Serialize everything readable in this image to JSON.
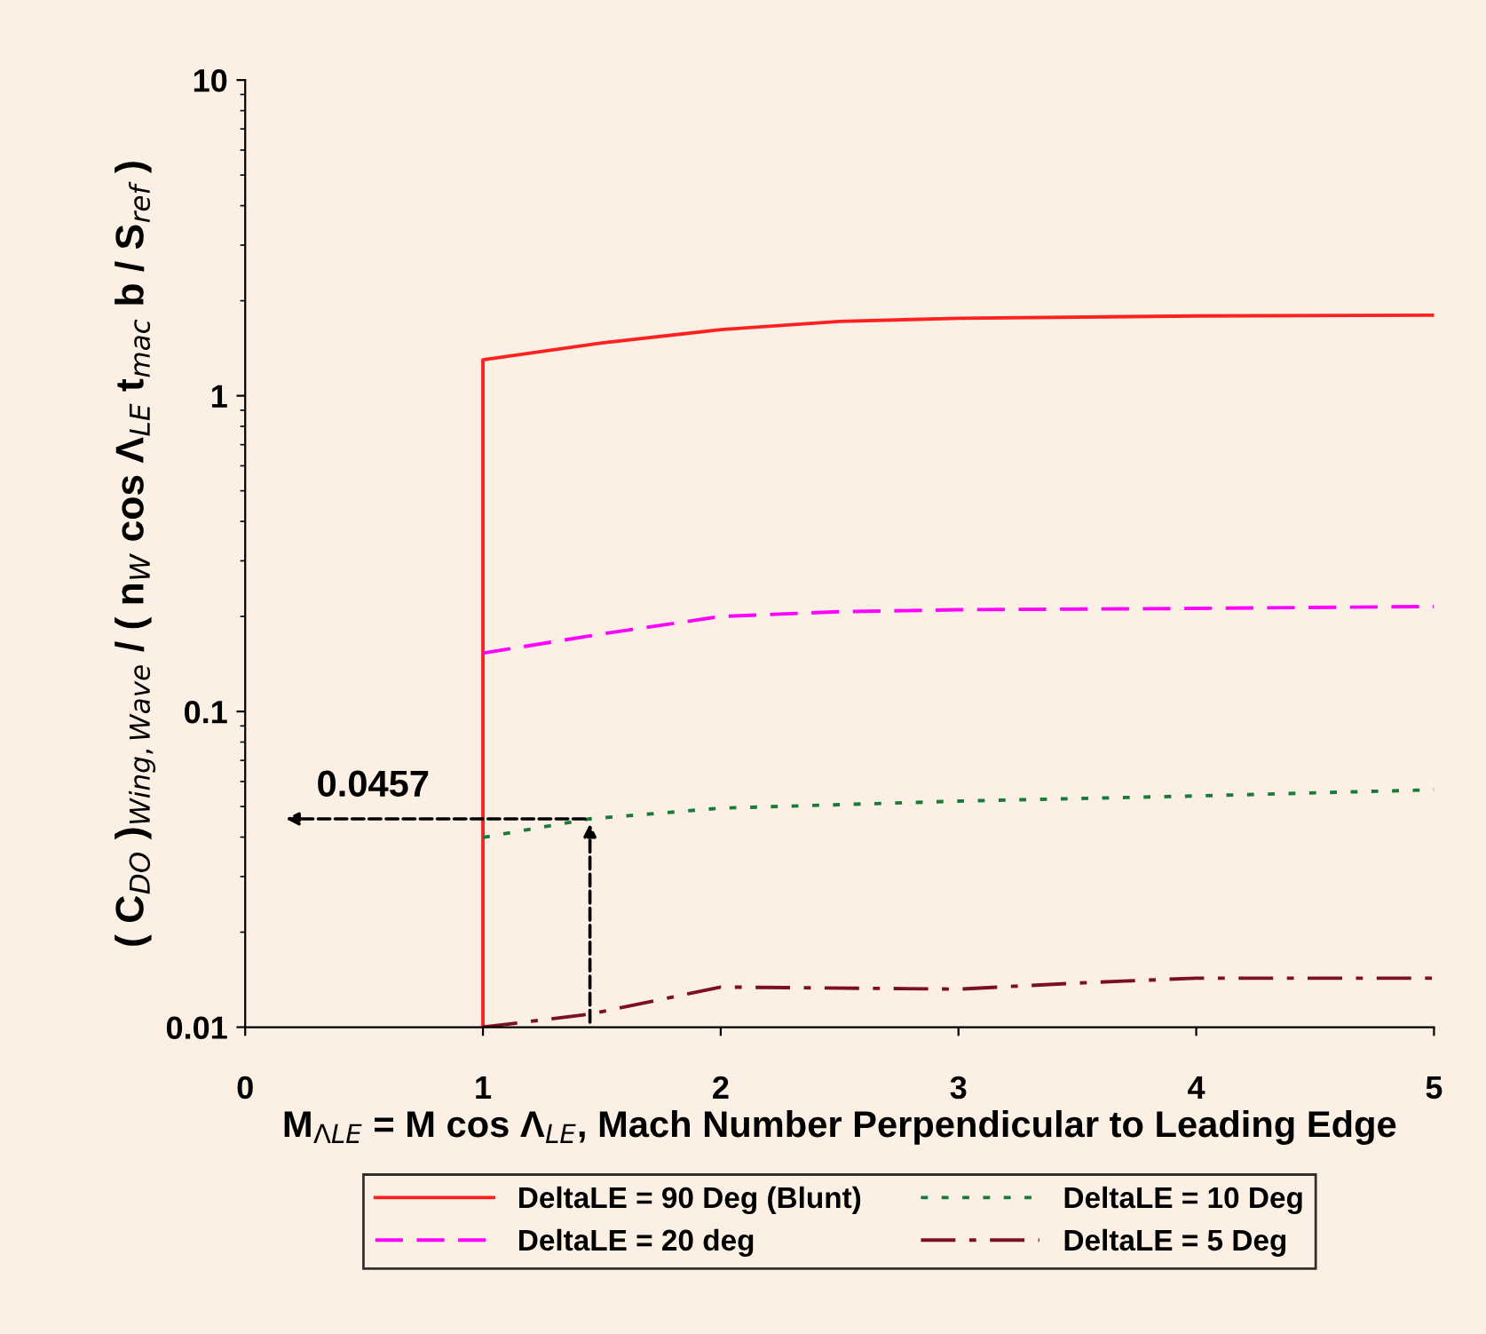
{
  "chart_data": {
    "type": "line",
    "xlabel": "M$_{ΛLE}$ = M cos Λ$_{LE}$, Mach Number Perpendicular to Leading Edge",
    "ylabel": "( C$_{DO}$ )$_{Wing,Wave}$ / ( n$_{W}$ cos Λ$_{LE}$ t$_{mac}$ b / S$_{ref}$ )",
    "log": "y",
    "xlim": [
      0,
      5
    ],
    "ylim": [
      0.01,
      10
    ],
    "xticks": [
      0,
      1,
      2,
      3,
      4,
      5
    ],
    "yticks": [
      0.01,
      0.1,
      1,
      10
    ],
    "grid": false,
    "legend": "bottom",
    "marker": "none",
    "series": [
      {
        "name": "DeltaLE = 90 Deg (Blunt)",
        "color": "#ff2020",
        "line_style": "solid",
        "x": [
          1,
          1,
          1.5,
          2,
          2.5,
          3,
          4,
          5
        ],
        "values": [
          0.01,
          1.3,
          1.47,
          1.62,
          1.72,
          1.76,
          1.79,
          1.8
        ]
      },
      {
        "name": "DeltaLE = 20 deg",
        "color": "#ff00ff",
        "line_style": "dashed",
        "x": [
          1,
          1.5,
          2,
          2.5,
          3,
          4,
          5
        ],
        "values": [
          0.153,
          0.176,
          0.2,
          0.207,
          0.21,
          0.212,
          0.215
        ]
      },
      {
        "name": "DeltaLE = 10 Deg",
        "color": "#1a7a3a",
        "line_style": "dotted",
        "x": [
          1,
          1.45,
          2,
          3,
          4,
          5
        ],
        "values": [
          0.0399,
          0.0457,
          0.0494,
          0.052,
          0.054,
          0.0565
        ]
      },
      {
        "name": "DeltaLE = 5 Deg",
        "color": "#7a1020",
        "line_style": "dashdot",
        "x": [
          1,
          1.45,
          2,
          3,
          3.5,
          4,
          5
        ],
        "values": [
          0.01,
          0.011,
          0.0134,
          0.0132,
          0.0138,
          0.0143,
          0.0143
        ]
      }
    ],
    "annotations": [
      {
        "text": "0.0457",
        "x": 1.45,
        "y": 0.0457
      }
    ]
  }
}
